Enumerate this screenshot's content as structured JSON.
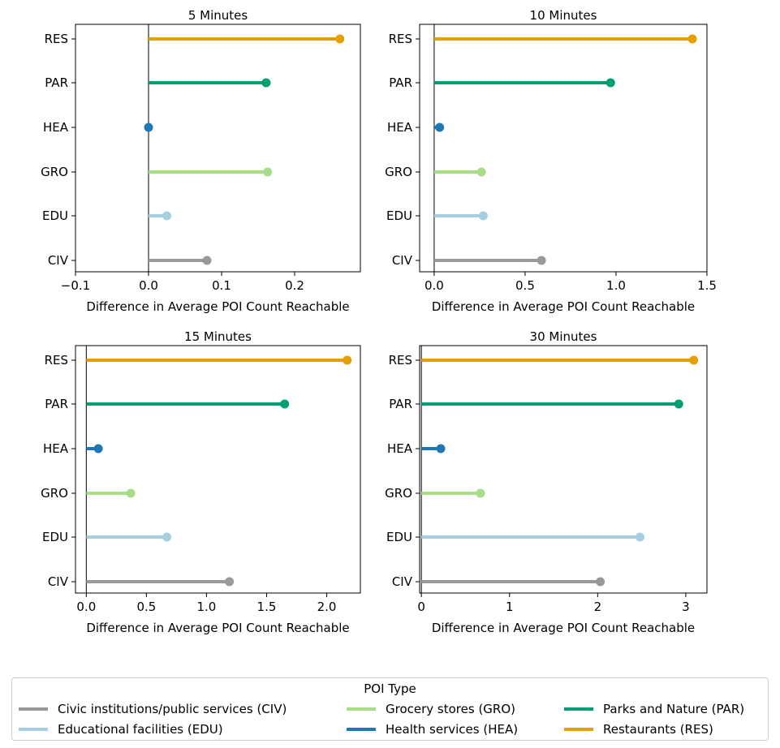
{
  "chart_data": [
    {
      "type": "lollipop",
      "title": "5 Minutes",
      "xlabel": "Difference in Average POI Count Reachable",
      "xlim": [
        -0.1,
        0.29
      ],
      "xticks": [
        -0.1,
        0.0,
        0.1,
        0.2
      ],
      "xtick_labels": [
        "−0.1",
        "0.0",
        "0.1",
        "0.2"
      ],
      "categories": [
        "RES",
        "PAR",
        "HEA",
        "GRO",
        "EDU",
        "CIV"
      ],
      "values": [
        0.262,
        0.161,
        0.0,
        0.163,
        0.025,
        0.08
      ]
    },
    {
      "type": "lollipop",
      "title": "10 Minutes",
      "xlabel": "Difference in Average POI Count Reachable",
      "xlim": [
        -0.08,
        1.5
      ],
      "xticks": [
        0.0,
        0.5,
        1.0,
        1.5
      ],
      "xtick_labels": [
        "0.0",
        "0.5",
        "1.0",
        "1.5"
      ],
      "categories": [
        "RES",
        "PAR",
        "HEA",
        "GRO",
        "EDU",
        "CIV"
      ],
      "values": [
        1.42,
        0.97,
        0.03,
        0.26,
        0.27,
        0.59
      ]
    },
    {
      "type": "lollipop",
      "title": "15 Minutes",
      "xlabel": "Difference in Average POI Count Reachable",
      "xlim": [
        -0.09,
        2.28
      ],
      "xticks": [
        0.0,
        0.5,
        1.0,
        1.5,
        2.0
      ],
      "xtick_labels": [
        "0.0",
        "0.5",
        "1.0",
        "1.5",
        "2.0"
      ],
      "categories": [
        "RES",
        "PAR",
        "HEA",
        "GRO",
        "EDU",
        "CIV"
      ],
      "values": [
        2.17,
        1.65,
        0.1,
        0.37,
        0.67,
        1.19
      ]
    },
    {
      "type": "lollipop",
      "title": "30 Minutes",
      "xlabel": "Difference in Average POI Count Reachable",
      "xlim": [
        -0.02,
        3.24
      ],
      "xticks": [
        0,
        1,
        2,
        3
      ],
      "xtick_labels": [
        "0",
        "1",
        "2",
        "3"
      ],
      "categories": [
        "RES",
        "PAR",
        "HEA",
        "GRO",
        "EDU",
        "CIV"
      ],
      "values": [
        3.09,
        2.92,
        0.22,
        0.67,
        2.48,
        2.03
      ]
    }
  ],
  "colors": {
    "RES": "#e69f00",
    "PAR": "#009e73",
    "HEA": "#1f77b4",
    "GRO": "#a8dd88",
    "EDU": "#a6cee3",
    "CIV": "#999999"
  },
  "legend": {
    "title": "POI Type",
    "items": [
      {
        "key": "CIV",
        "label": "Civic institutions/public services (CIV)"
      },
      {
        "key": "EDU",
        "label": "Educational facilities (EDU)"
      },
      {
        "key": "GRO",
        "label": "Grocery stores (GRO)"
      },
      {
        "key": "HEA",
        "label": "Health services (HEA)"
      },
      {
        "key": "PAR",
        "label": "Parks and Nature (PAR)"
      },
      {
        "key": "RES",
        "label": "Restaurants (RES)"
      }
    ]
  }
}
